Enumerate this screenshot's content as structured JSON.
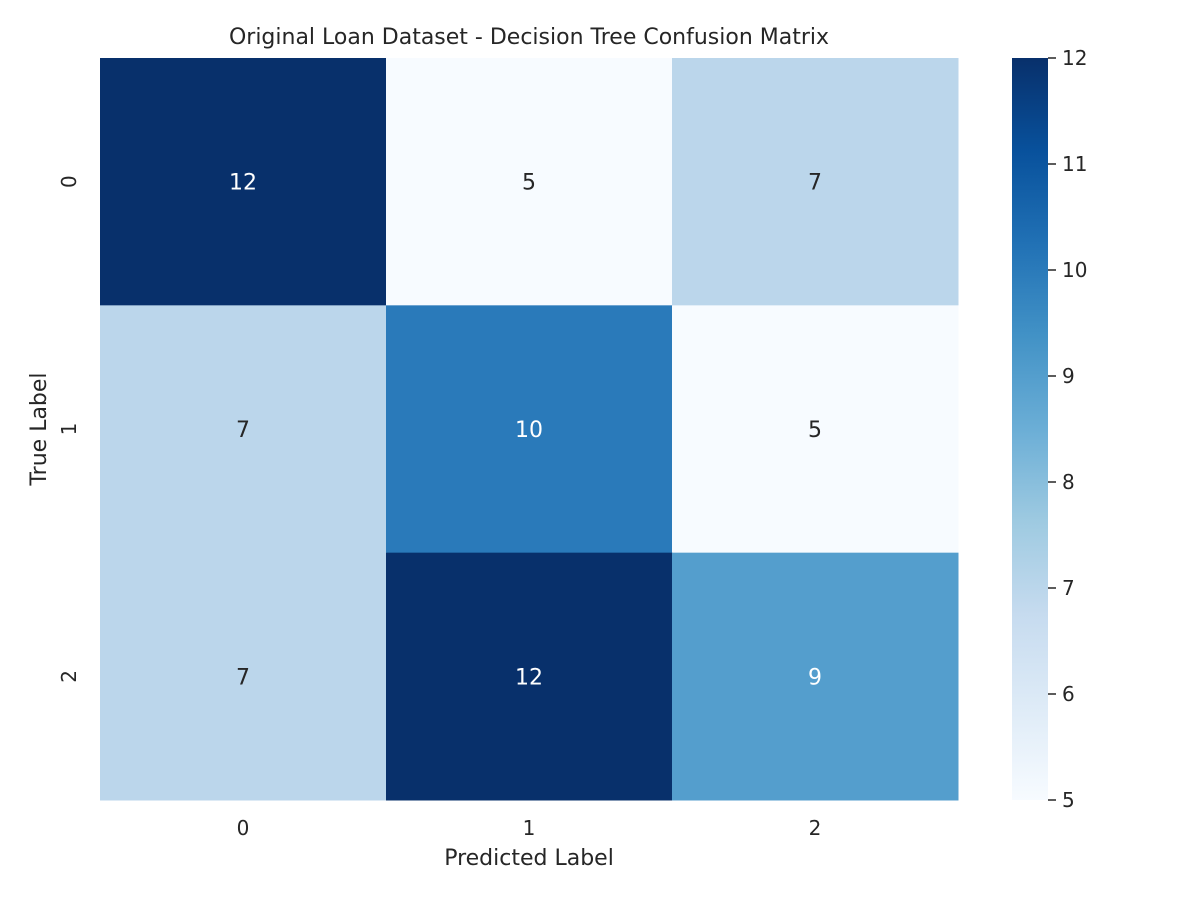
{
  "chart_data": {
    "type": "heatmap",
    "title": "Original Loan Dataset - Decision Tree Confusion Matrix",
    "xlabel": "Predicted Label",
    "ylabel": "True Label",
    "x_categories": [
      "0",
      "1",
      "2"
    ],
    "y_categories": [
      "0",
      "1",
      "2"
    ],
    "values": [
      [
        12,
        5,
        7
      ],
      [
        7,
        10,
        5
      ],
      [
        7,
        12,
        9
      ]
    ],
    "colormap": "Blues",
    "colorbar": {
      "vmin": 5,
      "vmax": 12,
      "ticks": [
        5,
        6,
        7,
        8,
        9,
        10,
        11,
        12
      ]
    },
    "grid": false
  }
}
